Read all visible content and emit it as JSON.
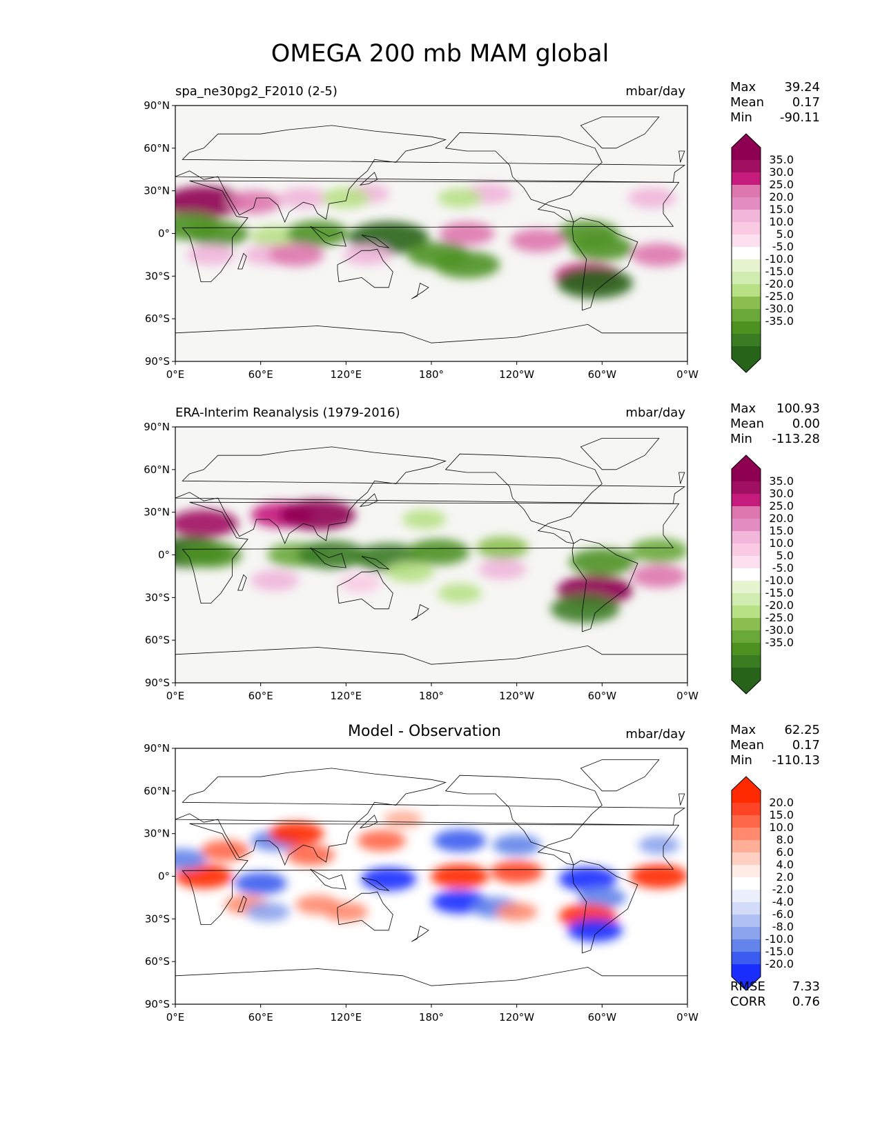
{
  "title": "OMEGA 200 mb MAM global",
  "colors": {
    "background": "#f6f6f4",
    "greens": [
      "#276419",
      "#3a7c22",
      "#4d9221",
      "#6aa83a",
      "#8bbf4f",
      "#b8e186",
      "#d1ecb0",
      "#e6f5d0"
    ],
    "pinks": [
      "#fde0ef",
      "#f9cae2",
      "#f1b6da",
      "#e38cc2",
      "#de77ae",
      "#c51b7d",
      "#a10f63",
      "#8e0152"
    ],
    "blues": [
      "#1a2eff",
      "#3c5cf0",
      "#6384ea",
      "#8ca3ee",
      "#b0c0f2",
      "#d2dcf8",
      "#ecf0fc"
    ],
    "reds": [
      "#ffece6",
      "#ffd0c2",
      "#ffae98",
      "#ff8a6e",
      "#ff6749",
      "#ff4425",
      "#ff2a00"
    ],
    "coast": "#000000"
  },
  "panels": [
    {
      "id": "model",
      "left_title": "spa_ne30pg2_F2010 (2-5)",
      "center_title": "",
      "units": "mbar/day",
      "stats": [
        {
          "label": "Max",
          "value": "39.24"
        },
        {
          "label": "Mean",
          "value": "0.17"
        },
        {
          "label": "Min",
          "value": "-90.11"
        }
      ],
      "colorbar": {
        "labels": [
          "35.0",
          "30.0",
          "25.0",
          "20.0",
          "15.0",
          "10.0",
          "5.0",
          "-5.0",
          "-10.0",
          "-15.0",
          "-20.0",
          "-25.0",
          "-30.0",
          "-35.0"
        ],
        "palette": "PiYG"
      },
      "extra_stats": []
    },
    {
      "id": "obs",
      "left_title": "ERA-Interim Reanalysis (1979-2016)",
      "center_title": "",
      "units": "mbar/day",
      "stats": [
        {
          "label": "Max",
          "value": "100.93"
        },
        {
          "label": "Mean",
          "value": "0.00"
        },
        {
          "label": "Min",
          "value": "-113.28"
        }
      ],
      "colorbar": {
        "labels": [
          "35.0",
          "30.0",
          "25.0",
          "20.0",
          "15.0",
          "10.0",
          "5.0",
          "-5.0",
          "-10.0",
          "-15.0",
          "-20.0",
          "-25.0",
          "-30.0",
          "-35.0"
        ],
        "palette": "PiYG"
      },
      "extra_stats": []
    },
    {
      "id": "diff",
      "left_title": "",
      "center_title": "Model - Observation",
      "units": "mbar/day",
      "stats": [
        {
          "label": "Max",
          "value": "62.25"
        },
        {
          "label": "Mean",
          "value": "0.17"
        },
        {
          "label": "Min",
          "value": "-110.13"
        }
      ],
      "colorbar": {
        "labels": [
          "20.0",
          "15.0",
          "10.0",
          "8.0",
          "6.0",
          "4.0",
          "2.0",
          "-2.0",
          "-4.0",
          "-6.0",
          "-8.0",
          "-10.0",
          "-15.0",
          "-20.0"
        ],
        "palette": "bwr"
      },
      "extra_stats": [
        {
          "label": "RMSE",
          "value": "7.33"
        },
        {
          "label": "CORR",
          "value": "0.76"
        }
      ]
    }
  ],
  "chart_data": [
    {
      "type": "heatmap",
      "title": "spa_ne30pg2_F2010 (2-5)",
      "units": "mbar/day",
      "x_ticks": [
        "0°E",
        "60°E",
        "120°E",
        "180°",
        "120°W",
        "60°W",
        "0°W"
      ],
      "y_ticks": [
        "90°N",
        "60°N",
        "30°N",
        "0°",
        "30°S",
        "60°S",
        "90°S"
      ],
      "xlim": [
        0,
        360
      ],
      "ylim": [
        -90,
        90
      ],
      "levels": [
        -35,
        -30,
        -25,
        -20,
        -15,
        -10,
        -5,
        5,
        10,
        15,
        20,
        25,
        30,
        35
      ],
      "features": [
        {
          "lon": 20,
          "lat": 22,
          "value": 38
        },
        {
          "lon": 55,
          "lat": 22,
          "value": 20
        },
        {
          "lon": 90,
          "lat": 25,
          "value": 15
        },
        {
          "lon": 135,
          "lat": 28,
          "value": 12
        },
        {
          "lon": 220,
          "lat": 28,
          "value": 15
        },
        {
          "lon": 335,
          "lat": 25,
          "value": 15
        },
        {
          "lon": 10,
          "lat": 5,
          "value": -28
        },
        {
          "lon": 30,
          "lat": 0,
          "value": -25
        },
        {
          "lon": 70,
          "lat": -2,
          "value": -15
        },
        {
          "lon": 100,
          "lat": 0,
          "value": -25
        },
        {
          "lon": 150,
          "lat": -3,
          "value": -38
        },
        {
          "lon": 185,
          "lat": -15,
          "value": -25
        },
        {
          "lon": 205,
          "lat": -22,
          "value": -28
        },
        {
          "lon": 290,
          "lat": 0,
          "value": -25
        },
        {
          "lon": 300,
          "lat": -10,
          "value": -25
        },
        {
          "lon": 205,
          "lat": 0,
          "value": 20
        },
        {
          "lon": 255,
          "lat": -5,
          "value": 20
        },
        {
          "lon": 340,
          "lat": -15,
          "value": 20
        },
        {
          "lon": 65,
          "lat": -15,
          "value": 15
        },
        {
          "lon": 85,
          "lat": -15,
          "value": 20
        },
        {
          "lon": 135,
          "lat": -15,
          "value": 15
        },
        {
          "lon": 25,
          "lat": -15,
          "value": 15
        },
        {
          "lon": 290,
          "lat": -30,
          "value": 28
        },
        {
          "lon": 295,
          "lat": -35,
          "value": -35
        },
        {
          "lon": 200,
          "lat": 25,
          "value": -12
        },
        {
          "lon": 120,
          "lat": 25,
          "value": -15
        }
      ]
    },
    {
      "type": "heatmap",
      "title": "ERA-Interim Reanalysis (1979-2016)",
      "units": "mbar/day",
      "x_ticks": [
        "0°E",
        "60°E",
        "120°E",
        "180°",
        "120°W",
        "60°W",
        "0°W"
      ],
      "y_ticks": [
        "90°N",
        "60°N",
        "30°N",
        "0°",
        "30°S",
        "60°S",
        "90°S"
      ],
      "xlim": [
        0,
        360
      ],
      "ylim": [
        -90,
        90
      ],
      "levels": [
        -35,
        -30,
        -25,
        -20,
        -15,
        -10,
        -5,
        5,
        10,
        15,
        20,
        25,
        30,
        35
      ],
      "features": [
        {
          "lon": 20,
          "lat": 22,
          "value": 30
        },
        {
          "lon": 75,
          "lat": 28,
          "value": 25
        },
        {
          "lon": 100,
          "lat": 28,
          "value": 35
        },
        {
          "lon": 10,
          "lat": 2,
          "value": -35
        },
        {
          "lon": 25,
          "lat": 0,
          "value": -25
        },
        {
          "lon": 85,
          "lat": 0,
          "value": -22
        },
        {
          "lon": 110,
          "lat": 0,
          "value": -30
        },
        {
          "lon": 150,
          "lat": -2,
          "value": -30
        },
        {
          "lon": 185,
          "lat": 2,
          "value": -25
        },
        {
          "lon": 230,
          "lat": 5,
          "value": -18
        },
        {
          "lon": 300,
          "lat": -5,
          "value": -28
        },
        {
          "lon": 340,
          "lat": 3,
          "value": -22
        },
        {
          "lon": 165,
          "lat": -12,
          "value": -15
        },
        {
          "lon": 230,
          "lat": -10,
          "value": 15
        },
        {
          "lon": 340,
          "lat": -15,
          "value": 20
        },
        {
          "lon": 70,
          "lat": -18,
          "value": 15
        },
        {
          "lon": 130,
          "lat": -20,
          "value": 10
        },
        {
          "lon": 295,
          "lat": -25,
          "value": 35
        },
        {
          "lon": 288,
          "lat": -38,
          "value": -30
        },
        {
          "lon": 175,
          "lat": 25,
          "value": -12
        },
        {
          "lon": 200,
          "lat": -27,
          "value": -12
        }
      ]
    },
    {
      "type": "heatmap",
      "title": "Model - Observation",
      "units": "mbar/day",
      "x_ticks": [
        "0°E",
        "60°E",
        "120°E",
        "180°",
        "120°W",
        "60°W",
        "0°W"
      ],
      "y_ticks": [
        "90°N",
        "60°N",
        "30°N",
        "0°",
        "30°S",
        "60°S",
        "90°S"
      ],
      "xlim": [
        0,
        360
      ],
      "ylim": [
        -90,
        90
      ],
      "levels": [
        -20,
        -15,
        -10,
        -8,
        -6,
        -4,
        -2,
        2,
        4,
        6,
        8,
        10,
        15,
        20
      ],
      "features": [
        {
          "lon": 20,
          "lat": 0,
          "value": 22
        },
        {
          "lon": 5,
          "lat": 12,
          "value": -15
        },
        {
          "lon": 35,
          "lat": 18,
          "value": 15
        },
        {
          "lon": 60,
          "lat": -5,
          "value": -18
        },
        {
          "lon": 70,
          "lat": 25,
          "value": -15
        },
        {
          "lon": 85,
          "lat": 30,
          "value": 20
        },
        {
          "lon": 95,
          "lat": 15,
          "value": 15
        },
        {
          "lon": 145,
          "lat": 25,
          "value": 15
        },
        {
          "lon": 150,
          "lat": -2,
          "value": -20
        },
        {
          "lon": 200,
          "lat": 0,
          "value": 22
        },
        {
          "lon": 240,
          "lat": 3,
          "value": 18
        },
        {
          "lon": 200,
          "lat": -18,
          "value": -20
        },
        {
          "lon": 225,
          "lat": -22,
          "value": -15
        },
        {
          "lon": 200,
          "lat": 25,
          "value": -18
        },
        {
          "lon": 240,
          "lat": 22,
          "value": -15
        },
        {
          "lon": 340,
          "lat": 0,
          "value": 22
        },
        {
          "lon": 290,
          "lat": -2,
          "value": -22
        },
        {
          "lon": 300,
          "lat": -15,
          "value": -15
        },
        {
          "lon": 290,
          "lat": -28,
          "value": 22
        },
        {
          "lon": 295,
          "lat": -38,
          "value": -20
        },
        {
          "lon": 100,
          "lat": -20,
          "value": 12
        },
        {
          "lon": 50,
          "lat": -20,
          "value": 12
        },
        {
          "lon": 160,
          "lat": 40,
          "value": 8
        },
        {
          "lon": 340,
          "lat": 22,
          "value": -10
        },
        {
          "lon": 240,
          "lat": -25,
          "value": 10
        },
        {
          "lon": 120,
          "lat": -25,
          "value": 12
        },
        {
          "lon": 65,
          "lat": -25,
          "value": -12
        }
      ]
    }
  ]
}
